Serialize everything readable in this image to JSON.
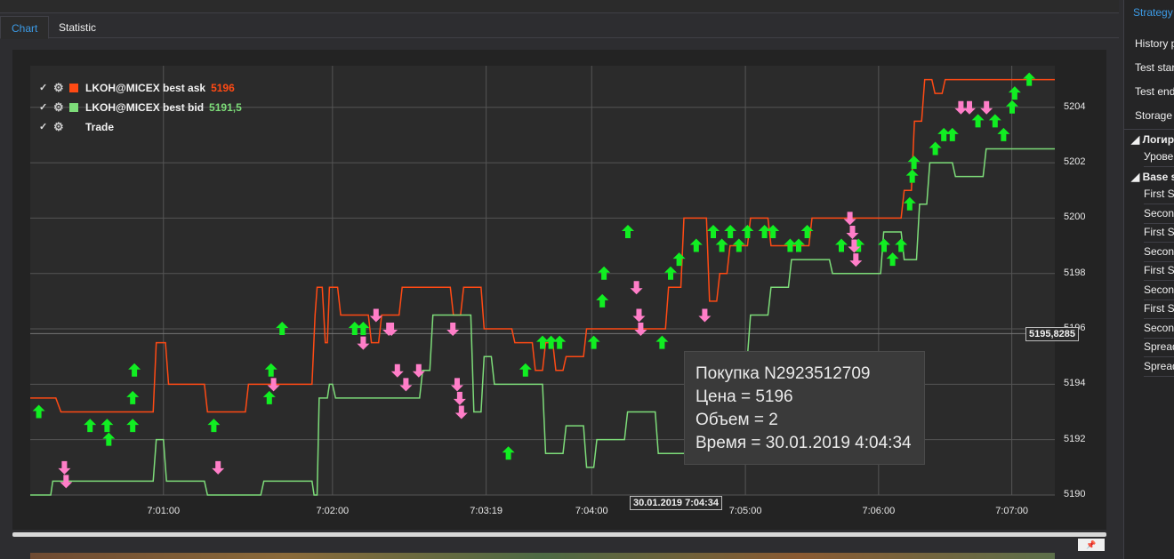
{
  "tabs": [
    {
      "label": "Chart",
      "active": true
    },
    {
      "label": "Statistic",
      "active": false
    }
  ],
  "legend": [
    {
      "check": "✓",
      "name": "LKOH@MICEX best ask",
      "value": "5196",
      "color": "#ff4a14"
    },
    {
      "check": "✓",
      "name": "LKOH@MICEX best bid",
      "value": "5191,5",
      "color": "#7ddc79"
    },
    {
      "check": "✓",
      "name": "Trade",
      "value": "",
      "color": ""
    }
  ],
  "tooltip": {
    "line1": "Покупка N2923512709",
    "line2": "Цена = 5196",
    "line3": "Объем = 2",
    "line4": "Время = 30.01.2019 4:04:34"
  },
  "cursor": {
    "y_value": "5195,8285",
    "x_value": "30.01.2019 7:04:34"
  },
  "sidebar": {
    "title": "Strategy",
    "rows": [
      "History p",
      "Test star",
      "Test end",
      "Storage"
    ],
    "group1": "Логир",
    "group1_items": [
      "Урове"
    ],
    "group2": "Base s",
    "group2_items": [
      "First Se",
      "Second",
      "First Se",
      "Second",
      "First Se",
      "Second",
      "First Se",
      "Second",
      "Spread",
      "Spread"
    ]
  },
  "chart_data": {
    "type": "line",
    "ylim": [
      5190,
      5205.5
    ],
    "yticks": [
      "5190",
      "5192",
      "5194",
      "5196",
      "5198",
      "5200",
      "5202",
      "5204"
    ],
    "xticks": [
      "7:01:00",
      "7:02:00",
      "7:03:19",
      "7:04:00",
      "7:05:00",
      "7:06:00",
      "7:07:00"
    ],
    "series": [
      {
        "name": "LKOH@MICEX best ask",
        "color": "#ff4a14",
        "points": [
          [
            0,
            5193.5
          ],
          [
            2.5,
            5193.5
          ],
          [
            3,
            5193
          ],
          [
            12,
            5193
          ],
          [
            12.3,
            5195.5
          ],
          [
            13.2,
            5195.5
          ],
          [
            13.5,
            5194
          ],
          [
            17,
            5194
          ],
          [
            17.3,
            5193
          ],
          [
            21,
            5193
          ],
          [
            21.3,
            5194
          ],
          [
            27.5,
            5194
          ],
          [
            27.8,
            5196.5
          ],
          [
            28,
            5197.5
          ],
          [
            28.5,
            5197.5
          ],
          [
            28.8,
            5195.5
          ],
          [
            29,
            5195.5
          ],
          [
            29.2,
            5197.5
          ],
          [
            30,
            5197.5
          ],
          [
            30.3,
            5196.5
          ],
          [
            33,
            5196.5
          ],
          [
            33.3,
            5195.5
          ],
          [
            34,
            5195.5
          ],
          [
            34.3,
            5196.5
          ],
          [
            36,
            5196.5
          ],
          [
            36.3,
            5197.5
          ],
          [
            41,
            5197.5
          ],
          [
            41.3,
            5196.5
          ],
          [
            42,
            5196.5
          ],
          [
            42.3,
            5197.5
          ],
          [
            44,
            5197.5
          ],
          [
            44.3,
            5196
          ],
          [
            47,
            5196
          ],
          [
            47.3,
            5195.5
          ],
          [
            49,
            5195.5
          ],
          [
            49.3,
            5194.5
          ],
          [
            50,
            5194.5
          ],
          [
            50.3,
            5195.5
          ],
          [
            51,
            5195.5
          ],
          [
            51.3,
            5194.5
          ],
          [
            52,
            5194.5
          ],
          [
            52.3,
            5195
          ],
          [
            54,
            5195
          ],
          [
            54.3,
            5196
          ],
          [
            62,
            5196
          ],
          [
            62.3,
            5197.5
          ],
          [
            63.5,
            5197.5
          ],
          [
            63.8,
            5200
          ],
          [
            66,
            5200
          ],
          [
            66.3,
            5197
          ],
          [
            67,
            5197
          ],
          [
            67.3,
            5198
          ],
          [
            68,
            5198
          ],
          [
            68.3,
            5199
          ],
          [
            70,
            5199
          ],
          [
            70.3,
            5200
          ],
          [
            72,
            5200
          ],
          [
            72.3,
            5199
          ],
          [
            76,
            5199
          ],
          [
            76.3,
            5200
          ],
          [
            85,
            5200
          ],
          [
            85.3,
            5201
          ],
          [
            86,
            5201
          ],
          [
            86.3,
            5203.5
          ],
          [
            87,
            5203.5
          ],
          [
            87.3,
            5205
          ],
          [
            88,
            5205
          ],
          [
            88.3,
            5204.5
          ],
          [
            89,
            5204.5
          ],
          [
            89.3,
            5205
          ],
          [
            100,
            5205
          ]
        ]
      },
      {
        "name": "LKOH@MICEX best bid",
        "color": "#7ddc79",
        "points": [
          [
            0,
            5190
          ],
          [
            2,
            5190
          ],
          [
            2.2,
            5190.5
          ],
          [
            12,
            5190.5
          ],
          [
            12.3,
            5192
          ],
          [
            13,
            5192
          ],
          [
            13.3,
            5190.5
          ],
          [
            17,
            5190.5
          ],
          [
            17.3,
            5190
          ],
          [
            22.5,
            5190
          ],
          [
            22.8,
            5190.5
          ],
          [
            27.5,
            5190.5
          ],
          [
            27.7,
            5190
          ],
          [
            28,
            5190
          ],
          [
            28.2,
            5193.5
          ],
          [
            29,
            5193.5
          ],
          [
            29.2,
            5194
          ],
          [
            29.5,
            5194
          ],
          [
            29.8,
            5193.5
          ],
          [
            38,
            5193.5
          ],
          [
            38.3,
            5194.5
          ],
          [
            39,
            5194.5
          ],
          [
            39.3,
            5196.5
          ],
          [
            43,
            5196.5
          ],
          [
            43.3,
            5193
          ],
          [
            44,
            5193
          ],
          [
            44.3,
            5195
          ],
          [
            45,
            5195
          ],
          [
            45.3,
            5194
          ],
          [
            50,
            5194
          ],
          [
            50.3,
            5191.5
          ],
          [
            52,
            5191.5
          ],
          [
            52.3,
            5192.5
          ],
          [
            54,
            5192.5
          ],
          [
            54.3,
            5191
          ],
          [
            55,
            5191
          ],
          [
            55.3,
            5192
          ],
          [
            58,
            5192
          ],
          [
            58.3,
            5193
          ],
          [
            61,
            5193
          ],
          [
            61.3,
            5191.5
          ],
          [
            66,
            5191.5
          ],
          [
            66.3,
            5195
          ],
          [
            70,
            5195
          ],
          [
            70.3,
            5196.5
          ],
          [
            72,
            5196.5
          ],
          [
            72.3,
            5197.5
          ],
          [
            74,
            5197.5
          ],
          [
            74.3,
            5198.5
          ],
          [
            78,
            5198.5
          ],
          [
            78.3,
            5198
          ],
          [
            83,
            5198
          ],
          [
            83.3,
            5199.5
          ],
          [
            85,
            5199.5
          ],
          [
            85.3,
            5198.5
          ],
          [
            86.5,
            5198.5
          ],
          [
            86.8,
            5200.5
          ],
          [
            87.5,
            5200.5
          ],
          [
            87.8,
            5202
          ],
          [
            90,
            5202
          ],
          [
            90.3,
            5201.5
          ],
          [
            93,
            5201.5
          ],
          [
            93.3,
            5202.5
          ],
          [
            100,
            5202.5
          ]
        ]
      }
    ],
    "buy_markers": [
      [
        1,
        5193
      ],
      [
        7,
        5192.5
      ],
      [
        9,
        5192.5
      ],
      [
        9.2,
        5192
      ],
      [
        12,
        5192.5
      ],
      [
        12,
        5193.5
      ],
      [
        12.2,
        5194.5
      ],
      [
        21.5,
        5192.5
      ],
      [
        28,
        5193.5
      ],
      [
        28.2,
        5194.5
      ],
      [
        29.5,
        5196
      ],
      [
        38,
        5196
      ],
      [
        39,
        5196
      ],
      [
        58,
        5194.5
      ],
      [
        60,
        5195.5
      ],
      [
        61,
        5195.5
      ],
      [
        62,
        5195.5
      ],
      [
        66,
        5195.5
      ],
      [
        67,
        5197
      ],
      [
        67.2,
        5198
      ],
      [
        70,
        5199.5
      ],
      [
        74,
        5195.5
      ],
      [
        75,
        5198
      ],
      [
        76,
        5198.5
      ],
      [
        78,
        5199
      ],
      [
        80,
        5199.5
      ],
      [
        81,
        5199
      ],
      [
        82,
        5199.5
      ],
      [
        83,
        5199
      ],
      [
        84,
        5199.5
      ],
      [
        86,
        5199.5
      ],
      [
        87,
        5199.5
      ],
      [
        89,
        5199
      ],
      [
        90,
        5199
      ],
      [
        91,
        5199.5
      ],
      [
        95,
        5199
      ],
      [
        97,
        5199
      ],
      [
        100,
        5199
      ],
      [
        101,
        5198.5
      ],
      [
        102,
        5199
      ],
      [
        103,
        5200.5
      ],
      [
        103.3,
        5201.5
      ],
      [
        103.5,
        5202
      ],
      [
        106,
        5202.5
      ],
      [
        107,
        5203
      ],
      [
        108,
        5203
      ],
      [
        111,
        5203.5
      ],
      [
        113,
        5203.5
      ],
      [
        114,
        5203
      ],
      [
        115,
        5204
      ],
      [
        115.3,
        5204.5
      ],
      [
        117,
        5205
      ],
      [
        56,
        5191.5
      ]
    ],
    "sell_markers": [
      [
        4,
        5191
      ],
      [
        4.2,
        5190.5
      ],
      [
        22,
        5191
      ],
      [
        28.5,
        5194
      ],
      [
        39,
        5195.5
      ],
      [
        40.5,
        5196.5
      ],
      [
        42,
        5196
      ],
      [
        42.3,
        5196
      ],
      [
        43,
        5194.5
      ],
      [
        44,
        5194
      ],
      [
        45.5,
        5194.5
      ],
      [
        49.5,
        5196
      ],
      [
        50,
        5194
      ],
      [
        50.3,
        5193.5
      ],
      [
        50.5,
        5193
      ],
      [
        71,
        5197.5
      ],
      [
        71.3,
        5196.5
      ],
      [
        71.5,
        5196
      ],
      [
        79,
        5196.5
      ],
      [
        96,
        5200
      ],
      [
        96.3,
        5199.5
      ],
      [
        96.5,
        5199
      ],
      [
        96.7,
        5198.5
      ],
      [
        109,
        5204
      ],
      [
        110,
        5204
      ],
      [
        112,
        5204
      ]
    ]
  }
}
